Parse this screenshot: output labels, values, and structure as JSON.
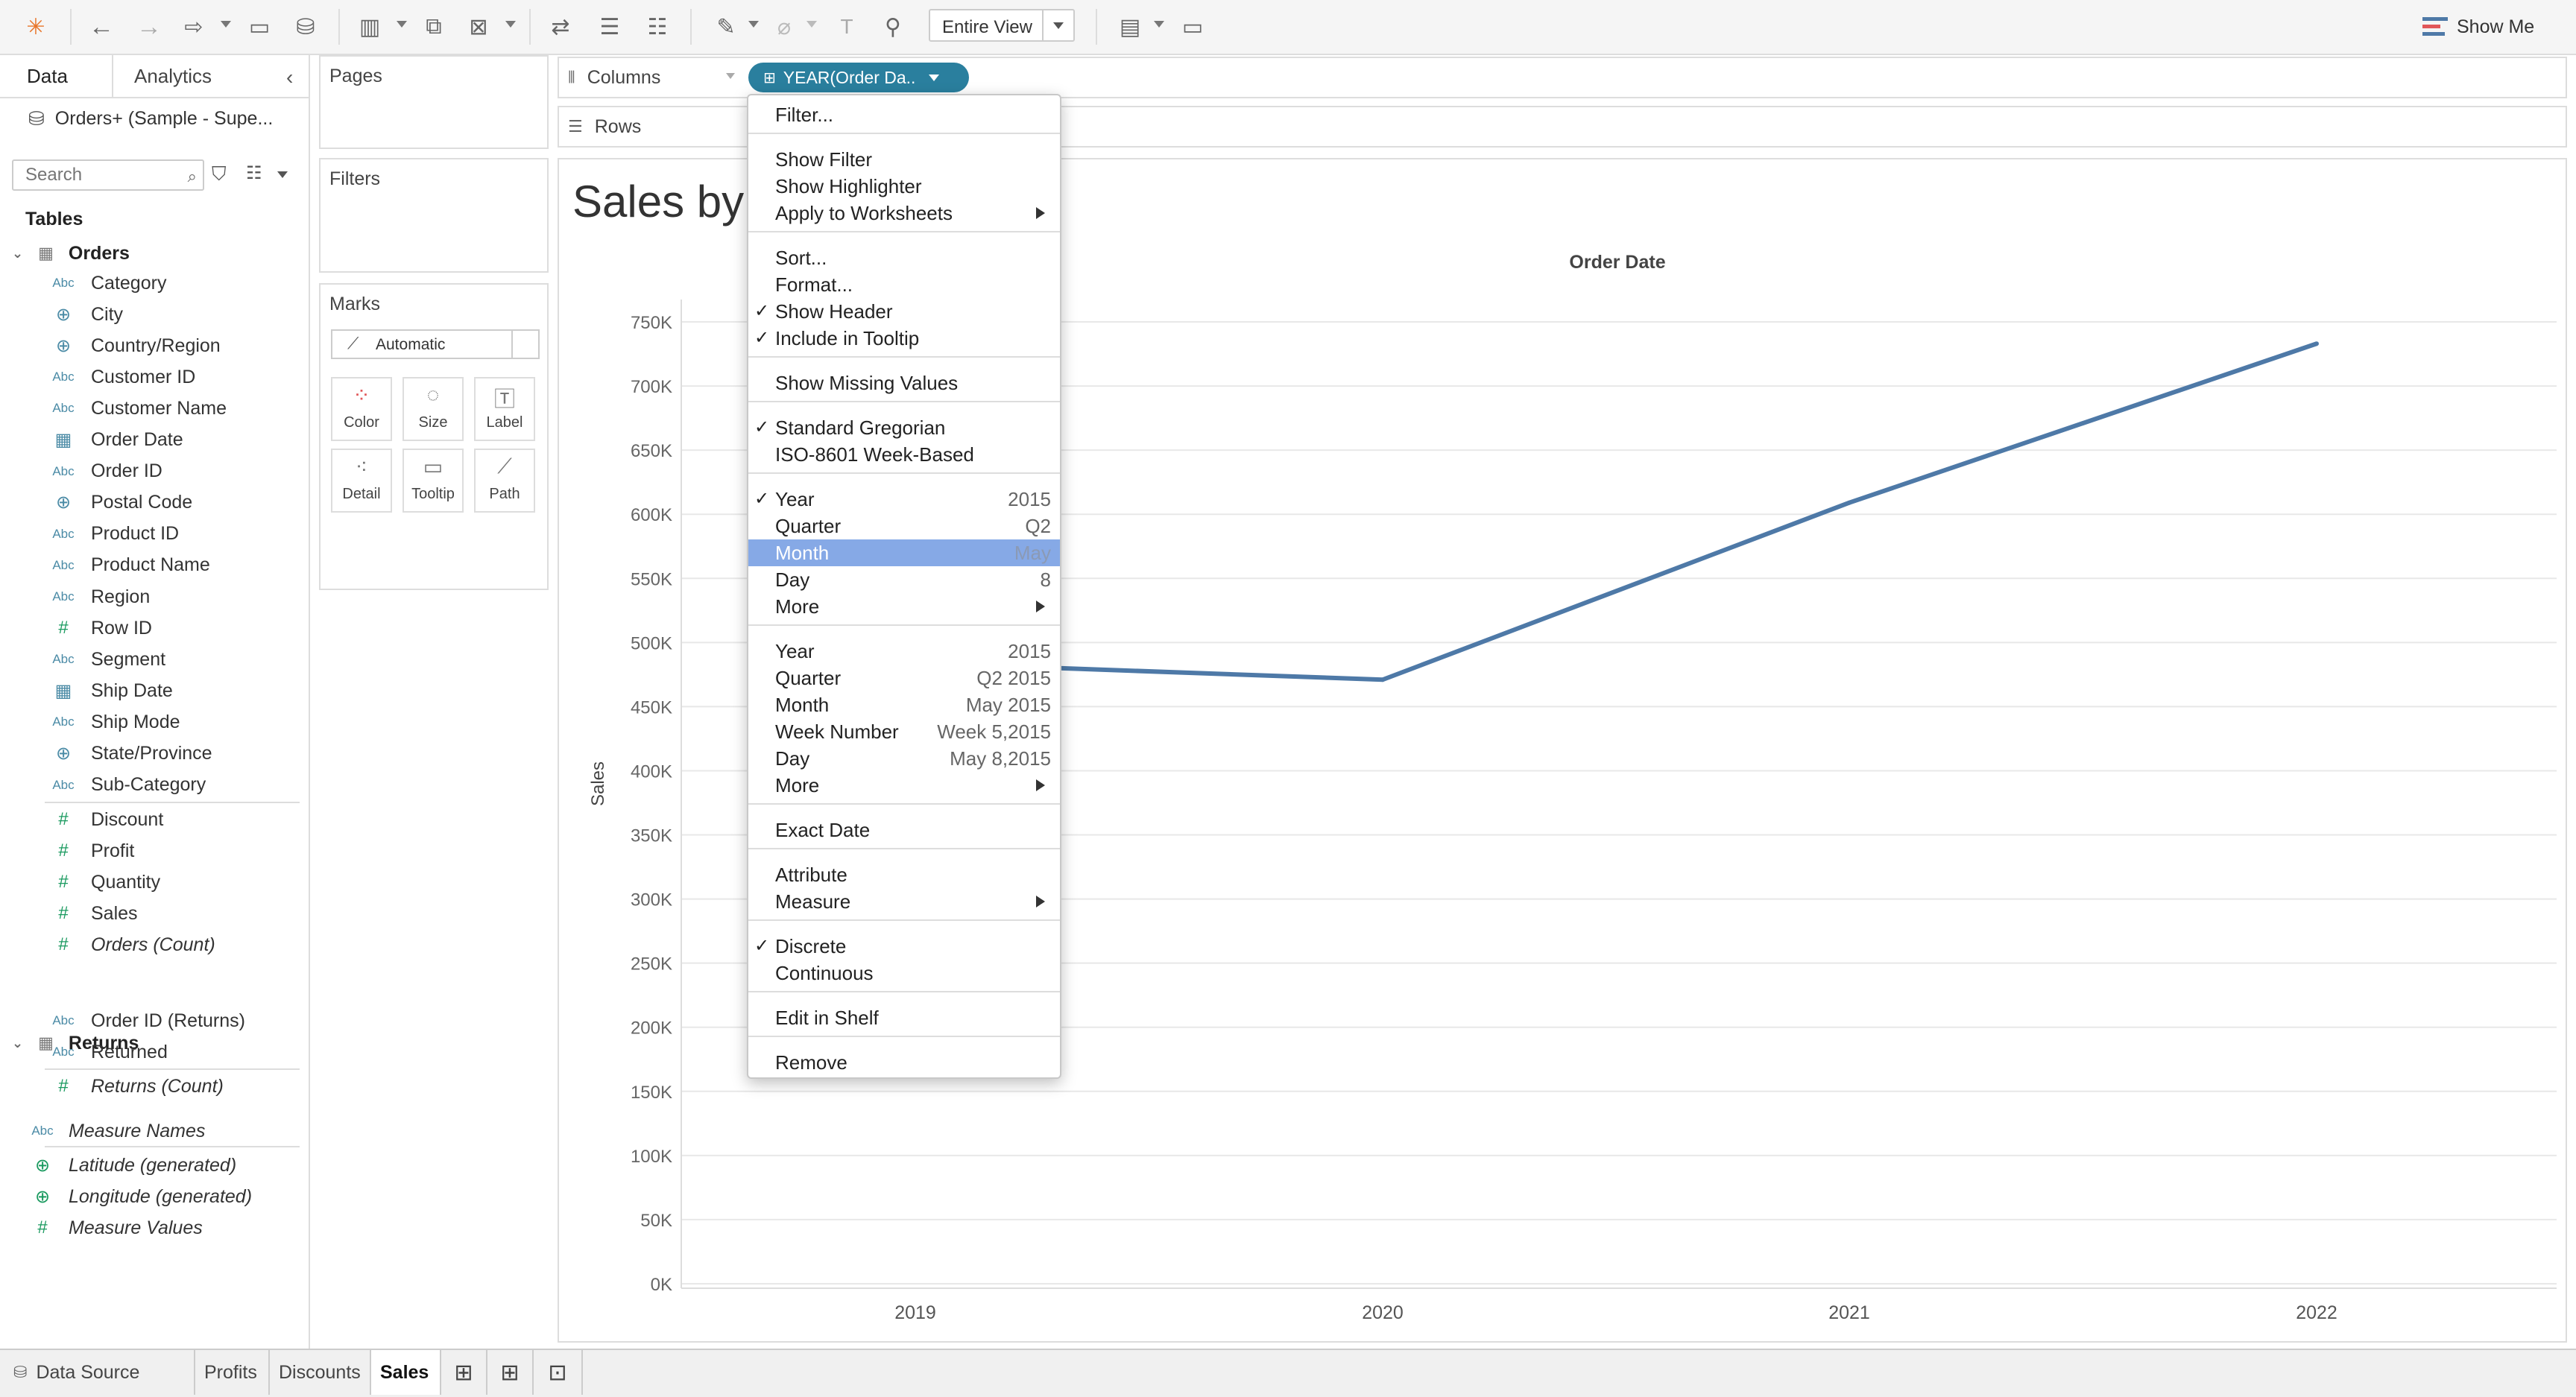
{
  "toolbar": {
    "fit": "Entire View",
    "show_me": "Show Me"
  },
  "data_pane": {
    "tab_data": "Data",
    "tab_analytics": "Analytics",
    "datasource": "Orders+ (Sample - Supe...",
    "search_placeholder": "Search",
    "tables_heading": "Tables",
    "orders_table": "Orders",
    "orders_dims": [
      {
        "icon": "Abc",
        "label": "Category"
      },
      {
        "icon": "globe",
        "label": "City"
      },
      {
        "icon": "globe",
        "label": "Country/Region"
      },
      {
        "icon": "Abc",
        "label": "Customer ID"
      },
      {
        "icon": "Abc",
        "label": "Customer Name"
      },
      {
        "icon": "calendar",
        "label": "Order Date"
      },
      {
        "icon": "Abc",
        "label": "Order ID"
      },
      {
        "icon": "globe",
        "label": "Postal Code"
      },
      {
        "icon": "Abc",
        "label": "Product ID"
      },
      {
        "icon": "Abc",
        "label": "Product Name"
      },
      {
        "icon": "Abc",
        "label": "Region"
      },
      {
        "icon": "#",
        "label": "Row ID"
      },
      {
        "icon": "Abc",
        "label": "Segment"
      },
      {
        "icon": "calendar",
        "label": "Ship Date"
      },
      {
        "icon": "Abc",
        "label": "Ship Mode"
      },
      {
        "icon": "globe",
        "label": "State/Province"
      },
      {
        "icon": "Abc",
        "label": "Sub-Category"
      }
    ],
    "orders_measures": [
      {
        "icon": "#",
        "label": "Discount"
      },
      {
        "icon": "#",
        "label": "Profit"
      },
      {
        "icon": "#",
        "label": "Quantity"
      },
      {
        "icon": "#",
        "label": "Sales"
      },
      {
        "icon": "#",
        "label": "Orders (Count)"
      }
    ],
    "returns_table": "Returns",
    "returns_fields": [
      {
        "icon": "Abc",
        "label": "Order ID (Returns)"
      },
      {
        "icon": "Abc",
        "label": "Returned"
      },
      {
        "icon": "#",
        "label": "Returns (Count)"
      }
    ],
    "extra_fields": [
      {
        "icon": "Abc",
        "label": "Measure Names"
      },
      {
        "icon": "globe",
        "label": "Latitude (generated)"
      },
      {
        "icon": "globe",
        "label": "Longitude (generated)"
      },
      {
        "icon": "#",
        "label": "Measure Values"
      }
    ]
  },
  "cards": {
    "pages": "Pages",
    "filters": "Filters",
    "marks": "Marks",
    "marks_type": "Automatic",
    "mark_buttons": [
      "Color",
      "Size",
      "Label",
      "Detail",
      "Tooltip",
      "Path"
    ]
  },
  "shelves": {
    "columns": "Columns",
    "rows": "Rows",
    "pill": "YEAR(Order Da.."
  },
  "sheet": {
    "title": "Sales by"
  },
  "context_menu": {
    "items": [
      {
        "label": "Filter...",
        "check": false,
        "right": "",
        "submenu": false
      },
      {
        "sep": true
      },
      {
        "label": "Show Filter",
        "check": false,
        "right": "",
        "submenu": false
      },
      {
        "label": "Show Highlighter",
        "check": false,
        "right": "",
        "submenu": false
      },
      {
        "label": "Apply to Worksheets",
        "check": false,
        "right": "",
        "submenu": true
      },
      {
        "sep": true
      },
      {
        "label": "Sort...",
        "check": false,
        "right": "",
        "submenu": false
      },
      {
        "label": "Format...",
        "check": false,
        "right": "",
        "submenu": false
      },
      {
        "label": "Show Header",
        "check": true,
        "right": "",
        "submenu": false
      },
      {
        "label": "Include in Tooltip",
        "check": true,
        "right": "",
        "submenu": false
      },
      {
        "sep": true
      },
      {
        "label": "Show Missing Values",
        "check": false,
        "right": "",
        "submenu": false
      },
      {
        "sep": true
      },
      {
        "label": "Standard Gregorian",
        "check": true,
        "right": "",
        "submenu": false
      },
      {
        "label": "ISO-8601 Week-Based",
        "check": false,
        "right": "",
        "submenu": false
      },
      {
        "sep": true
      },
      {
        "label": "Year",
        "check": true,
        "right": "2015",
        "submenu": false
      },
      {
        "label": "Quarter",
        "check": false,
        "right": "Q2",
        "submenu": false
      },
      {
        "label": "Month",
        "check": false,
        "right": "May",
        "submenu": false,
        "highlight": true
      },
      {
        "label": "Day",
        "check": false,
        "right": "8",
        "submenu": false
      },
      {
        "label": "More",
        "check": false,
        "right": "",
        "submenu": true
      },
      {
        "sep": true
      },
      {
        "label": "Year",
        "check": false,
        "right": "2015",
        "submenu": false
      },
      {
        "label": "Quarter",
        "check": false,
        "right": "Q2 2015",
        "submenu": false
      },
      {
        "label": "Month",
        "check": false,
        "right": "May 2015",
        "submenu": false
      },
      {
        "label": "Week Number",
        "check": false,
        "right": "Week 5,2015",
        "submenu": false
      },
      {
        "label": "Day",
        "check": false,
        "right": "May 8,2015",
        "submenu": false
      },
      {
        "label": "More",
        "check": false,
        "right": "",
        "submenu": true
      },
      {
        "sep": true
      },
      {
        "label": "Exact Date",
        "check": false,
        "right": "",
        "submenu": false
      },
      {
        "sep": true
      },
      {
        "label": "Attribute",
        "check": false,
        "right": "",
        "submenu": false
      },
      {
        "label": "Measure",
        "check": false,
        "right": "",
        "submenu": true
      },
      {
        "sep": true
      },
      {
        "label": "Discrete",
        "check": true,
        "right": "",
        "submenu": false
      },
      {
        "label": "Continuous",
        "check": false,
        "right": "",
        "submenu": false
      },
      {
        "sep": true
      },
      {
        "label": "Edit in Shelf",
        "check": false,
        "right": "",
        "submenu": false
      },
      {
        "sep": true
      },
      {
        "label": "Remove",
        "check": false,
        "right": "",
        "submenu": false
      }
    ]
  },
  "bottom_tabs": [
    "Data Source",
    "Profits",
    "Discounts",
    "Sales"
  ],
  "active_tab": "Sales",
  "colors": {
    "line": "#4e79a7",
    "pill": "#2a7f9e",
    "menu_highlight": "#86a9e6"
  },
  "chart_data": {
    "type": "line",
    "title": "Sales by",
    "header": "Order Date",
    "ylabel": "Sales",
    "ylim": [
      0,
      750000
    ],
    "y_ticks": [
      "0K",
      "50K",
      "100K",
      "150K",
      "200K",
      "250K",
      "300K",
      "350K",
      "400K",
      "450K",
      "500K",
      "550K",
      "600K",
      "650K",
      "700K",
      "750K"
    ],
    "x": [
      "2019",
      "2020",
      "2021",
      "2022"
    ],
    "series": [
      {
        "values": [
          484000,
          471000,
          609000,
          733000
        ]
      }
    ]
  }
}
